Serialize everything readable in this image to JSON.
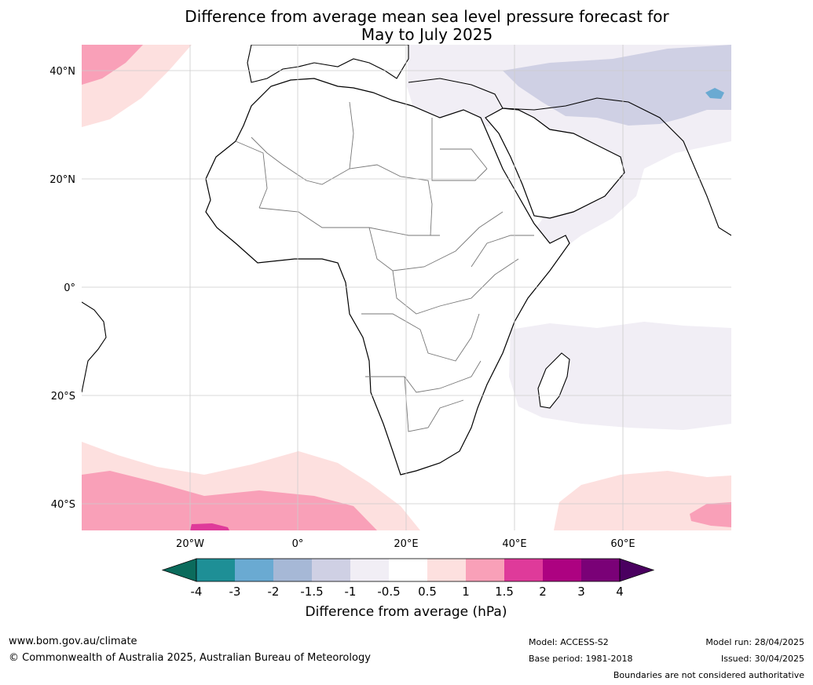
{
  "header": {
    "title_line1": "Difference from average mean sea level pressure forecast for",
    "title_line2": "May to July 2025"
  },
  "map": {
    "region": "Africa",
    "lon_labels": [
      "20°W",
      "0°",
      "20°E",
      "40°E",
      "60°E"
    ],
    "lat_labels": [
      "40°N",
      "20°N",
      "0°",
      "20°S",
      "40°S"
    ],
    "gridlines": true
  },
  "colorbar": {
    "title": "Difference from average (hPa)",
    "tick_labels": [
      "-4",
      "-3",
      "-2",
      "-1.5",
      "-1",
      "-0.5",
      "0.5",
      "1",
      "1.5",
      "2",
      "3",
      "4"
    ],
    "colors": {
      "below_min": "#0b6b5c",
      "bins": [
        "#1e8f96",
        "#6aaad2",
        "#a6b8d6",
        "#cfd0e4",
        "#f1eef5",
        "#ffffff",
        "#fde0df",
        "#f9a0b8",
        "#df3a9a",
        "#ad0281",
        "#7a0177"
      ],
      "above_max": "#4a0060"
    }
  },
  "footer": {
    "website": "www.bom.gov.au/climate",
    "copyright": "© Commonwealth of Australia 2025, Australian Bureau of Meteorology",
    "model": "Model: ACCESS-S2",
    "base_period": "Base period: 1981-2018",
    "model_run": "Model run: 28/04/2025",
    "issued": "Issued: 30/04/2025",
    "disclaimer": "Boundaries are not considered authoritative"
  }
}
